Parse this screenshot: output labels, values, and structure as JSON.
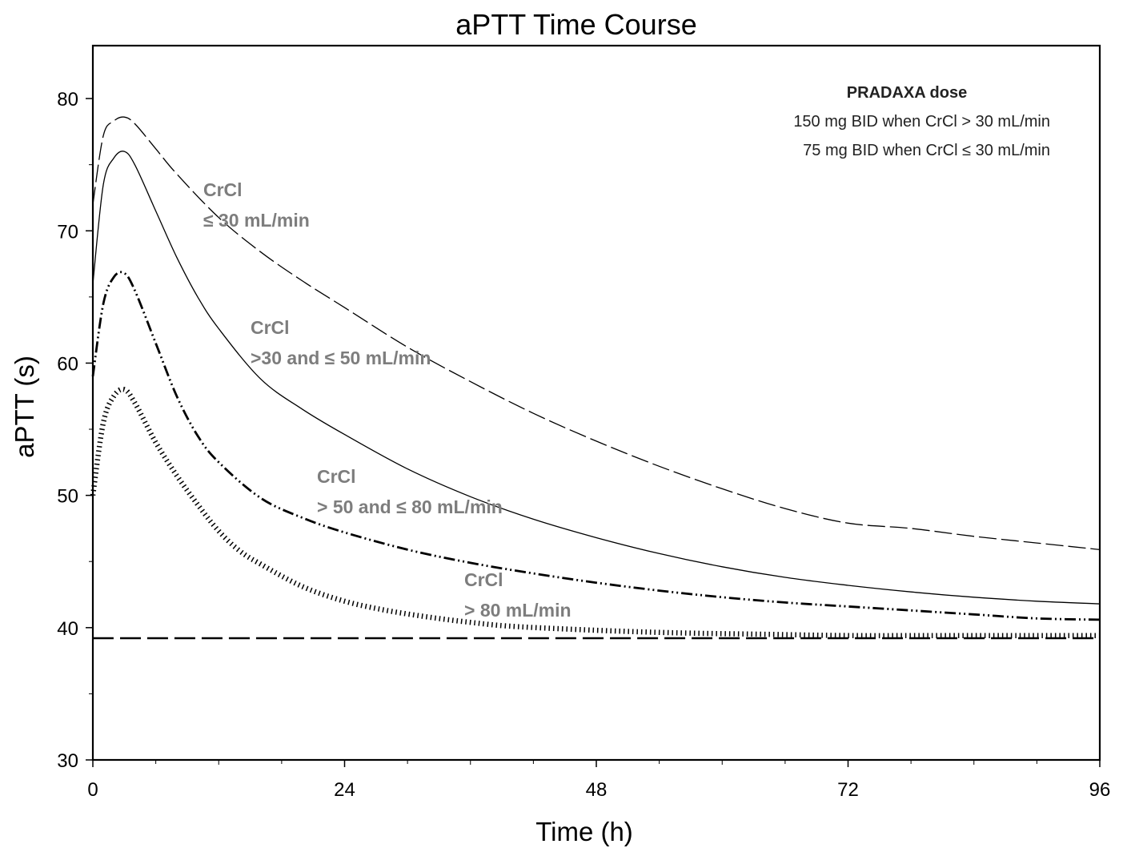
{
  "chart_data": {
    "type": "line",
    "title": "aPTT Time Course",
    "xlabel": "Time (h)",
    "ylabel": "aPTT (s)",
    "xlim": [
      0,
      96
    ],
    "ylim": [
      30,
      84
    ],
    "xticks": [
      0,
      24,
      48,
      72,
      96
    ],
    "yticks": [
      30,
      40,
      50,
      60,
      70,
      80
    ],
    "grid": false,
    "legend_box": {
      "title": "PRADAXA dose",
      "lines": [
        "150 mg BID when CrCl > 30 mL/min",
        "75 mg BID when CrCl ≤ 30 mL/min"
      ],
      "placement": "top-right"
    },
    "series": [
      {
        "label_line1": "CrCl",
        "label_line2": "≤ 30 mL/min",
        "style": "long-dash",
        "x": [
          0,
          1,
          2,
          3,
          4,
          6,
          8,
          12,
          16,
          20,
          24,
          30,
          36,
          42,
          48,
          54,
          60,
          66,
          72,
          78,
          84,
          90,
          96
        ],
        "y": [
          72,
          77.2,
          78.3,
          78.6,
          78.1,
          76.2,
          74.3,
          71.0,
          68.4,
          66.2,
          64.2,
          61.2,
          58.6,
          56.2,
          54.1,
          52.2,
          50.5,
          49.0,
          47.9,
          47.5,
          46.9,
          46.4,
          45.9
        ]
      },
      {
        "label_line1": "CrCl",
        "label_line2": ">30 and ≤ 50 mL/min",
        "style": "solid",
        "x": [
          0,
          1,
          2,
          3,
          4,
          6,
          8,
          10,
          12,
          16,
          20,
          24,
          30,
          36,
          42,
          48,
          54,
          60,
          66,
          72,
          78,
          84,
          90,
          96
        ],
        "y": [
          66,
          73.5,
          75.5,
          76.0,
          75.0,
          71.5,
          68.0,
          65.0,
          62.6,
          58.8,
          56.5,
          54.6,
          52.0,
          49.9,
          48.2,
          46.8,
          45.6,
          44.6,
          43.8,
          43.2,
          42.7,
          42.3,
          42.0,
          41.8
        ]
      },
      {
        "label_line1": "CrCl",
        "label_line2": "> 50 and ≤ 80 mL/min",
        "style": "dash-dot-dot",
        "x": [
          0,
          1,
          2,
          3,
          4,
          6,
          8,
          10,
          12,
          16,
          20,
          24,
          30,
          36,
          42,
          48,
          54,
          60,
          66,
          72,
          78,
          84,
          90,
          96
        ],
        "y": [
          59,
          64.5,
          66.5,
          66.8,
          65.5,
          61.5,
          57.5,
          54.5,
          52.5,
          49.8,
          48.3,
          47.2,
          45.9,
          44.9,
          44.1,
          43.4,
          42.8,
          42.3,
          41.9,
          41.6,
          41.3,
          41.0,
          40.7,
          40.6
        ]
      },
      {
        "label_line1": "CrCl",
        "label_line2": "> 80 mL/min",
        "style": "dotted",
        "x": [
          0,
          1,
          2,
          3,
          4,
          6,
          8,
          10,
          12,
          14,
          16,
          20,
          24,
          28,
          32,
          36,
          40,
          48,
          56,
          64,
          72,
          80,
          88,
          96
        ],
        "y": [
          50,
          55.5,
          57.5,
          58.0,
          57.0,
          54.0,
          51.5,
          49.3,
          47.3,
          45.8,
          44.8,
          43.1,
          42.0,
          41.3,
          40.8,
          40.4,
          40.1,
          39.8,
          39.6,
          39.5,
          39.4,
          39.4,
          39.4,
          39.4
        ]
      },
      {
        "label_line1": "",
        "label_line2": "",
        "style": "dashed-baseline",
        "x": [
          0,
          96
        ],
        "y": [
          39.2,
          39.2
        ]
      }
    ]
  }
}
